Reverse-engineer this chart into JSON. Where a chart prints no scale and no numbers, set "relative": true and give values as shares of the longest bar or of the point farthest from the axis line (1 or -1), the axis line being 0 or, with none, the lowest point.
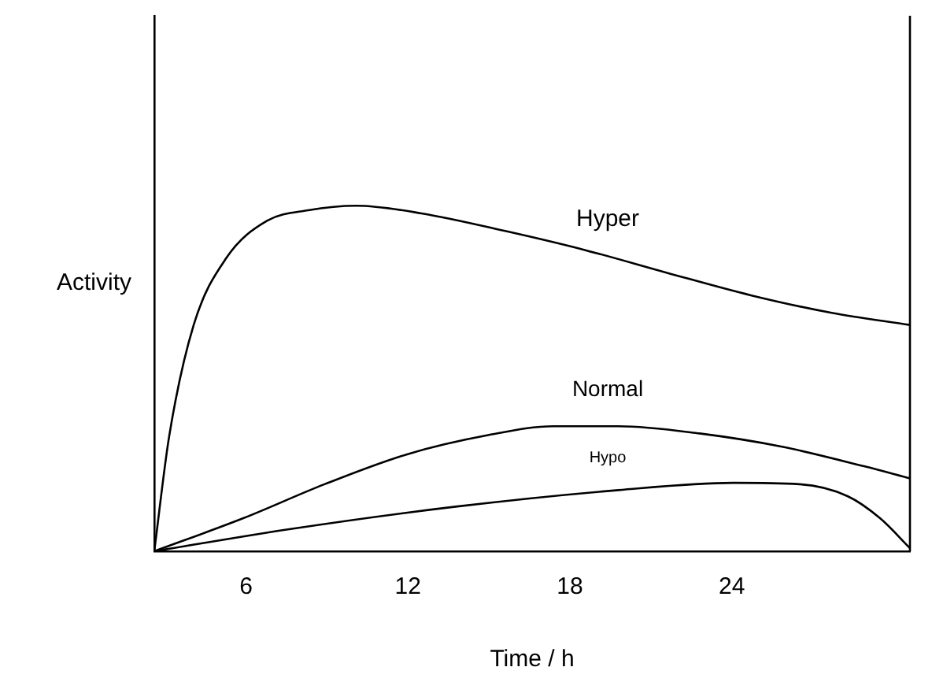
{
  "chart_data": {
    "type": "line",
    "xlabel": "Time / h",
    "ylabel": "Activity",
    "relative": true,
    "xlim": [
      2.6,
      30.6
    ],
    "xticks": [
      6,
      12,
      18,
      24
    ],
    "grid": false,
    "legend": false,
    "marker": "none",
    "line_style": "solid",
    "series": [
      {
        "name": "Hyper",
        "color": "#000000",
        "x": [
          2.6,
          3.15,
          4.06,
          5.27,
          6.79,
          8.3,
          10.1,
          12.5,
          15.6,
          18.6,
          21.6,
          24.7,
          27.7,
          30.6
        ],
        "values": [
          0,
          0.332,
          0.655,
          0.849,
          0.957,
          0.987,
          1,
          0.978,
          0.927,
          0.871,
          0.806,
          0.741,
          0.69,
          0.655
        ]
      },
      {
        "name": "Normal",
        "color": "#000000",
        "x": [
          2.6,
          5.88,
          8.91,
          11.94,
          14.97,
          17.4,
          19.8,
          22.8,
          25.9,
          28.9,
          30.6
        ],
        "values": [
          0,
          0.095,
          0.194,
          0.28,
          0.336,
          0.362,
          0.362,
          0.341,
          0.302,
          0.246,
          0.211
        ]
      },
      {
        "name": "Hypo",
        "color": "#000000",
        "x": [
          2.6,
          7.7,
          13.76,
          19.8,
          24.06,
          26.5,
          28.3,
          29.5,
          30.6
        ],
        "values": [
          0,
          0.065,
          0.129,
          0.177,
          0.198,
          0.194,
          0.159,
          0.095,
          0.009
        ]
      }
    ]
  }
}
